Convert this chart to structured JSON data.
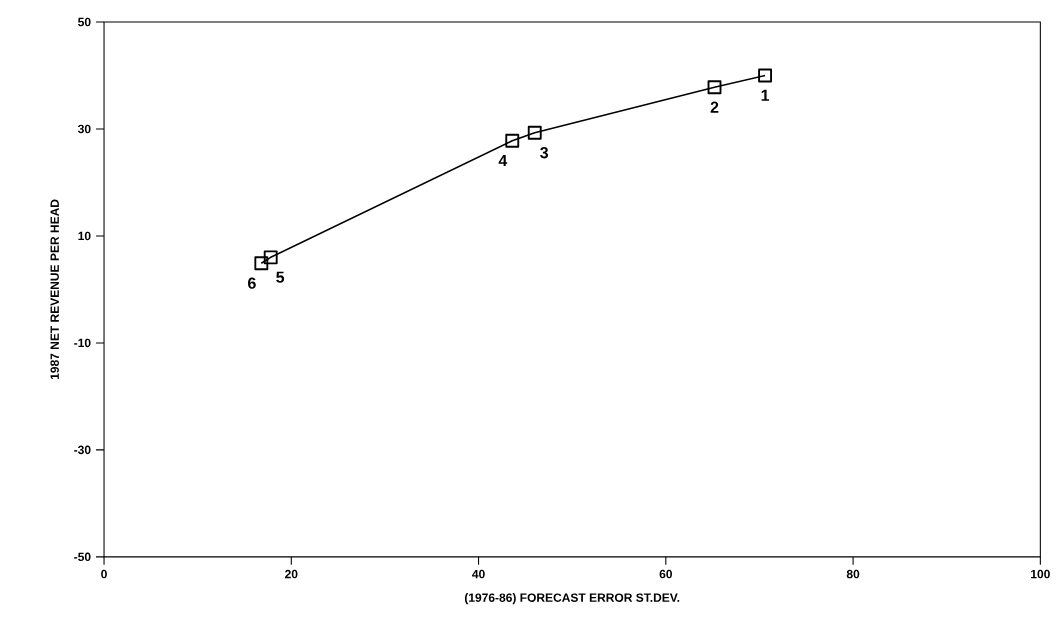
{
  "chart_data": {
    "type": "line",
    "xlabel": "(1976-86) FORECAST ERROR ST.DEV.",
    "ylabel": "1987 NET REVENUE PER HEAD",
    "x": [
      70.6,
      65.2,
      46.0,
      43.6,
      17.8,
      16.8
    ],
    "values": [
      40.0,
      37.8,
      29.3,
      27.8,
      6.0,
      4.9
    ],
    "color": "#000000",
    "marker": "square",
    "line_style": "solid",
    "grid": false,
    "xlim": [
      0,
      100
    ],
    "xticks": [
      0,
      20,
      40,
      60,
      80,
      100
    ],
    "ylim": [
      -50,
      50
    ],
    "yticks": [
      -50,
      -30,
      -10,
      10,
      30,
      50
    ],
    "annotations": [
      {
        "text": "1",
        "x": 70.6,
        "y": 40.0
      },
      {
        "text": "2",
        "x": 65.2,
        "y": 37.8
      },
      {
        "text": "3",
        "x": 46.0,
        "y": 29.3
      },
      {
        "text": "4",
        "x": 43.6,
        "y": 27.8
      },
      {
        "text": "5",
        "x": 17.8,
        "y": 6.0
      },
      {
        "text": "6",
        "x": 16.8,
        "y": 4.9
      }
    ]
  }
}
